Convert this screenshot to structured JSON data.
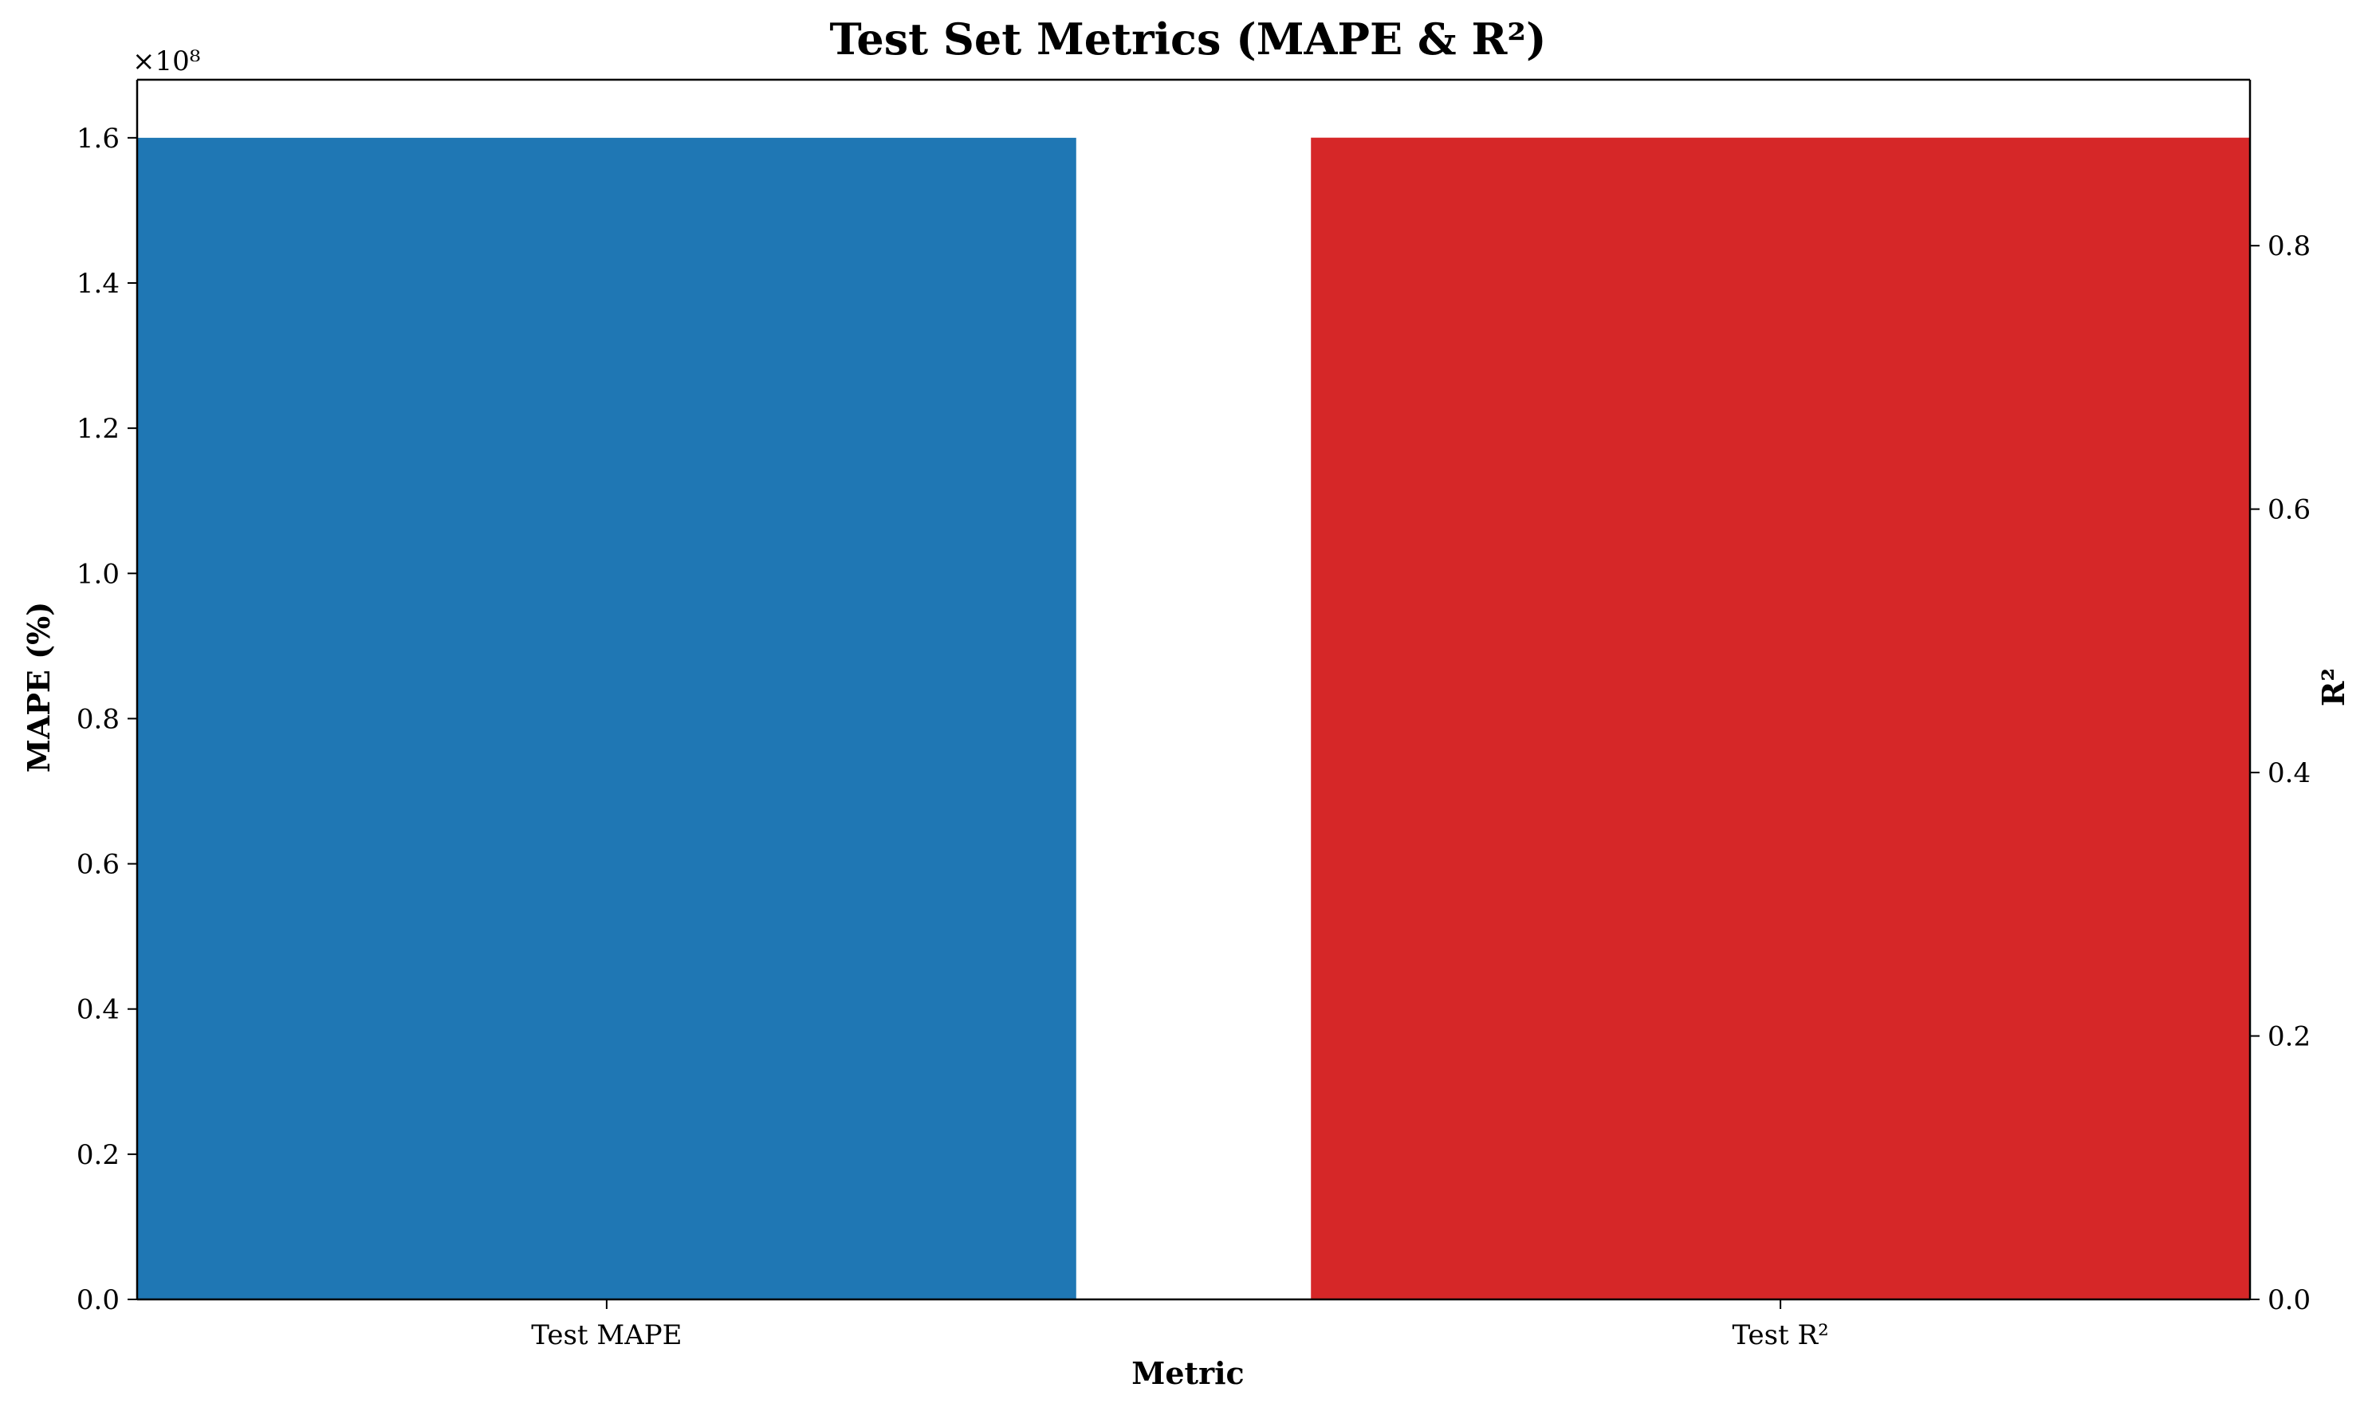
{
  "chart_data": {
    "type": "bar",
    "title": "Test Set Metrics (MAPE & R²)",
    "xlabel": "Metric",
    "categories": [
      "Test MAPE",
      "Test R²"
    ],
    "left_axis": {
      "label": "MAPE (%)",
      "color": "#1f77b4",
      "ylim": [
        0,
        168000000
      ],
      "ticks": [
        0,
        20000000,
        40000000,
        60000000,
        80000000,
        100000000,
        120000000,
        140000000,
        160000000
      ],
      "tick_labels": [
        "0.0",
        "0.2",
        "0.4",
        "0.6",
        "0.8",
        "1.0",
        "1.2",
        "1.4",
        "1.6"
      ],
      "offset_text": "×10⁸"
    },
    "right_axis": {
      "label": "R²",
      "color": "#d62728",
      "ylim": [
        0,
        0.926
      ],
      "ticks": [
        0,
        0.2,
        0.4,
        0.6,
        0.8
      ],
      "tick_labels": [
        "0.0",
        "0.2",
        "0.4",
        "0.6",
        "0.8"
      ]
    },
    "series": [
      {
        "category": "Test MAPE",
        "axis": "left",
        "value": 160000000,
        "color": "#1f77b4"
      },
      {
        "category": "Test R²",
        "axis": "right",
        "value": 0.882,
        "color": "#d62728"
      }
    ],
    "grid": false,
    "legend": "none"
  }
}
